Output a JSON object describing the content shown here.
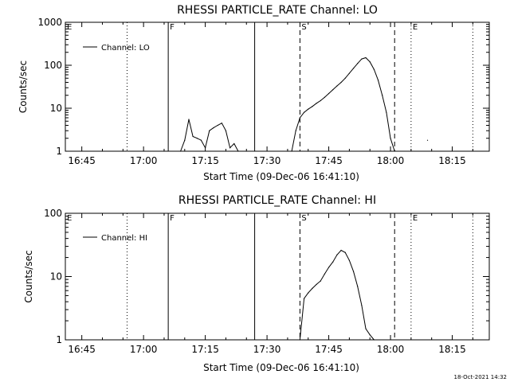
{
  "chart_data": [
    {
      "type": "line",
      "title": "RHESSI PARTICLE_RATE Channel: LO",
      "xlabel": "Start Time (09-Dec-06 16:41:10)",
      "ylabel": "Counts/sec",
      "yscale": "log",
      "ylim": [
        1,
        1000
      ],
      "xlim": [
        "16:41",
        "18:24"
      ],
      "x_ticks": [
        "16:45",
        "17:00",
        "17:15",
        "17:30",
        "17:45",
        "18:00",
        "18:15"
      ],
      "y_ticks": [
        "1",
        "10",
        "100",
        "1000"
      ],
      "legend": "top-left",
      "series": [
        {
          "name": "Channel: LO",
          "x": [
            "17:09",
            "17:10",
            "17:11",
            "17:12",
            "17:13",
            "17:14",
            "17:15",
            "17:16",
            "17:17",
            "17:18",
            "17:19",
            "17:20",
            "17:21",
            "17:22",
            "17:23",
            "17:36",
            "17:37",
            "17:38",
            "17:39",
            "17:40",
            "17:41",
            "17:42",
            "17:43",
            "17:44",
            "17:45",
            "17:46",
            "17:47",
            "17:48",
            "17:49",
            "17:50",
            "17:51",
            "17:52",
            "17:53",
            "17:54",
            "17:55",
            "17:56",
            "17:57",
            "17:58",
            "17:59",
            "18:00",
            "18:01",
            "18:09"
          ],
          "y": [
            1.0,
            1.8,
            5.5,
            2.2,
            2.0,
            1.8,
            1.2,
            3.0,
            3.5,
            4.0,
            4.5,
            3.0,
            1.2,
            1.5,
            1.0,
            1.0,
            3.0,
            6.0,
            8.0,
            9.5,
            11,
            13,
            15,
            18,
            22,
            27,
            33,
            40,
            50,
            65,
            85,
            110,
            140,
            150,
            120,
            80,
            45,
            20,
            8.0,
            2.0,
            1.0,
            1.8
          ]
        }
      ],
      "markers": [
        {
          "label": "E",
          "time": "16:41",
          "style": "dotted"
        },
        {
          "label": "",
          "time": "16:56",
          "style": "dotted"
        },
        {
          "label": "F",
          "time": "17:06",
          "style": "solid"
        },
        {
          "label": "",
          "time": "17:27",
          "style": "solid"
        },
        {
          "label": "S",
          "time": "17:38",
          "style": "dashed"
        },
        {
          "label": "",
          "time": "18:01",
          "style": "dashed"
        },
        {
          "label": "E",
          "time": "18:05",
          "style": "dotted"
        },
        {
          "label": "",
          "time": "18:20",
          "style": "dotted"
        }
      ]
    },
    {
      "type": "line",
      "title": "RHESSI PARTICLE_RATE Channel: HI",
      "xlabel": "Start Time (09-Dec-06 16:41:10)",
      "ylabel": "Counts/sec",
      "yscale": "log",
      "ylim": [
        1,
        100
      ],
      "xlim": [
        "16:41",
        "18:24"
      ],
      "x_ticks": [
        "16:45",
        "17:00",
        "17:15",
        "17:30",
        "17:45",
        "18:00",
        "18:15"
      ],
      "y_ticks": [
        "1",
        "10",
        "100"
      ],
      "legend": "top-left",
      "series": [
        {
          "name": "Channel: HI",
          "x": [
            "17:38",
            "17:39",
            "17:40",
            "17:41",
            "17:42",
            "17:43",
            "17:44",
            "17:45",
            "17:46",
            "17:47",
            "17:48",
            "17:49",
            "17:50",
            "17:51",
            "17:52",
            "17:53",
            "17:54",
            "17:55",
            "17:56"
          ],
          "y": [
            1.0,
            4.5,
            5.5,
            6.5,
            7.5,
            8.5,
            11,
            14,
            17,
            22,
            26,
            24,
            18,
            12,
            7.0,
            3.5,
            1.5,
            1.2,
            1.0
          ]
        }
      ],
      "markers": [
        {
          "label": "E",
          "time": "16:41",
          "style": "dotted"
        },
        {
          "label": "",
          "time": "16:56",
          "style": "dotted"
        },
        {
          "label": "F",
          "time": "17:06",
          "style": "solid"
        },
        {
          "label": "",
          "time": "17:27",
          "style": "solid"
        },
        {
          "label": "S",
          "time": "17:38",
          "style": "dashed"
        },
        {
          "label": "",
          "time": "18:01",
          "style": "dashed"
        },
        {
          "label": "E",
          "time": "18:05",
          "style": "dotted"
        },
        {
          "label": "",
          "time": "18:20",
          "style": "dotted"
        }
      ]
    }
  ],
  "footer": {
    "timestamp": "18-Oct-2021 14:32"
  }
}
